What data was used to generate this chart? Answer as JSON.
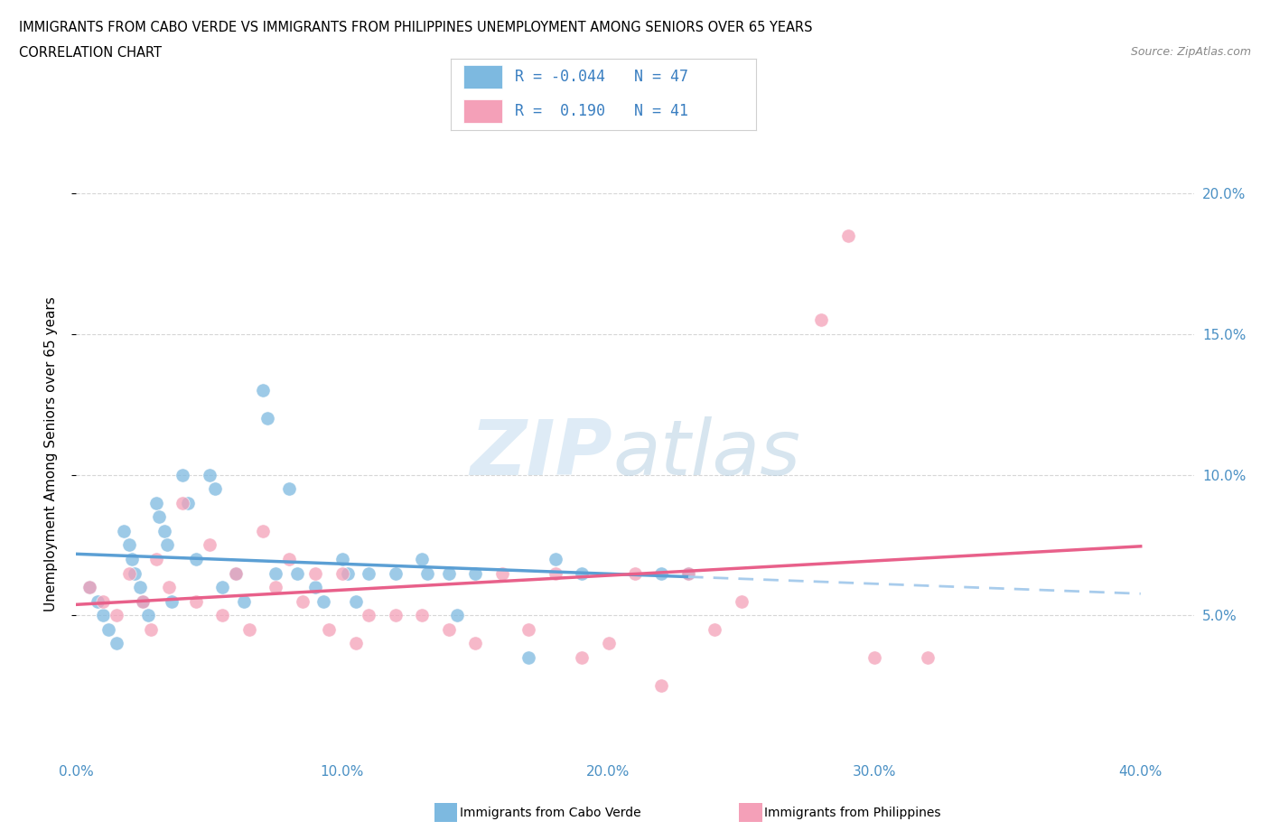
{
  "title_line1": "IMMIGRANTS FROM CABO VERDE VS IMMIGRANTS FROM PHILIPPINES UNEMPLOYMENT AMONG SENIORS OVER 65 YEARS",
  "title_line2": "CORRELATION CHART",
  "source": "Source: ZipAtlas.com",
  "ylabel": "Unemployment Among Seniors over 65 years",
  "xlim": [
    0.0,
    0.42
  ],
  "ylim": [
    0.0,
    0.215
  ],
  "x_ticks": [
    0.0,
    0.1,
    0.2,
    0.3,
    0.4
  ],
  "x_tick_labels": [
    "0.0%",
    "10.0%",
    "20.0%",
    "30.0%",
    "40.0%"
  ],
  "y_ticks": [
    0.05,
    0.1,
    0.15,
    0.2
  ],
  "y_tick_labels": [
    "5.0%",
    "10.0%",
    "15.0%",
    "20.0%"
  ],
  "cabo_verde_color": "#7db9e0",
  "philippines_color": "#f4a0b8",
  "cabo_verde_R": -0.044,
  "cabo_verde_N": 47,
  "philippines_R": 0.19,
  "philippines_N": 41,
  "cabo_verde_line_color": "#5b9fd4",
  "philippines_line_color": "#e8608a",
  "cabo_verde_dashed_color": "#a8ccec",
  "cabo_verde_x": [
    0.005,
    0.008,
    0.01,
    0.012,
    0.015,
    0.018,
    0.02,
    0.021,
    0.022,
    0.024,
    0.025,
    0.027,
    0.03,
    0.031,
    0.033,
    0.034,
    0.036,
    0.04,
    0.042,
    0.045,
    0.05,
    0.052,
    0.055,
    0.06,
    0.063,
    0.07,
    0.072,
    0.075,
    0.08,
    0.083,
    0.09,
    0.093,
    0.1,
    0.102,
    0.105,
    0.11,
    0.12,
    0.13,
    0.132,
    0.14,
    0.143,
    0.15,
    0.17,
    0.18,
    0.19,
    0.22,
    0.23
  ],
  "cabo_verde_y": [
    0.06,
    0.055,
    0.05,
    0.045,
    0.04,
    0.08,
    0.075,
    0.07,
    0.065,
    0.06,
    0.055,
    0.05,
    0.09,
    0.085,
    0.08,
    0.075,
    0.055,
    0.1,
    0.09,
    0.07,
    0.1,
    0.095,
    0.06,
    0.065,
    0.055,
    0.13,
    0.12,
    0.065,
    0.095,
    0.065,
    0.06,
    0.055,
    0.07,
    0.065,
    0.055,
    0.065,
    0.065,
    0.07,
    0.065,
    0.065,
    0.05,
    0.065,
    0.035,
    0.07,
    0.065,
    0.065,
    0.065
  ],
  "philippines_x": [
    0.005,
    0.01,
    0.015,
    0.02,
    0.025,
    0.028,
    0.03,
    0.035,
    0.04,
    0.045,
    0.05,
    0.055,
    0.06,
    0.065,
    0.07,
    0.075,
    0.08,
    0.085,
    0.09,
    0.095,
    0.1,
    0.105,
    0.11,
    0.12,
    0.13,
    0.14,
    0.15,
    0.16,
    0.17,
    0.18,
    0.19,
    0.2,
    0.21,
    0.22,
    0.23,
    0.24,
    0.25,
    0.28,
    0.29,
    0.3,
    0.32
  ],
  "philippines_y": [
    0.06,
    0.055,
    0.05,
    0.065,
    0.055,
    0.045,
    0.07,
    0.06,
    0.09,
    0.055,
    0.075,
    0.05,
    0.065,
    0.045,
    0.08,
    0.06,
    0.07,
    0.055,
    0.065,
    0.045,
    0.065,
    0.04,
    0.05,
    0.05,
    0.05,
    0.045,
    0.04,
    0.065,
    0.045,
    0.065,
    0.035,
    0.04,
    0.065,
    0.025,
    0.065,
    0.045,
    0.055,
    0.155,
    0.185,
    0.035,
    0.035
  ]
}
